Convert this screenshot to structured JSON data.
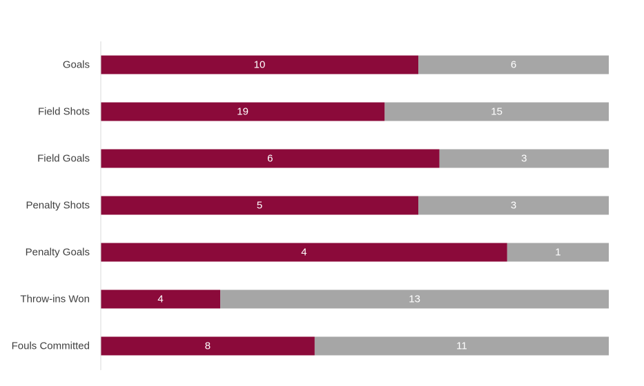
{
  "chart_data": {
    "type": "bar",
    "orientation": "horizontal",
    "stacked": "percent",
    "categories": [
      "Goals",
      "Field Shots",
      "Field Goals",
      "Penalty Shots",
      "Penalty Goals",
      "Throw-ins Won",
      "Fouls Committed"
    ],
    "series": [
      {
        "values": [
          10,
          19,
          6,
          5,
          4,
          4,
          8
        ],
        "color": "#8B0A3A"
      },
      {
        "values": [
          6,
          15,
          3,
          3,
          1,
          13,
          11
        ],
        "color": "#A6A6A6"
      }
    ],
    "title": "",
    "xlabel": "",
    "ylabel": "",
    "legend": "none",
    "grid": false,
    "data_labels": true
  }
}
